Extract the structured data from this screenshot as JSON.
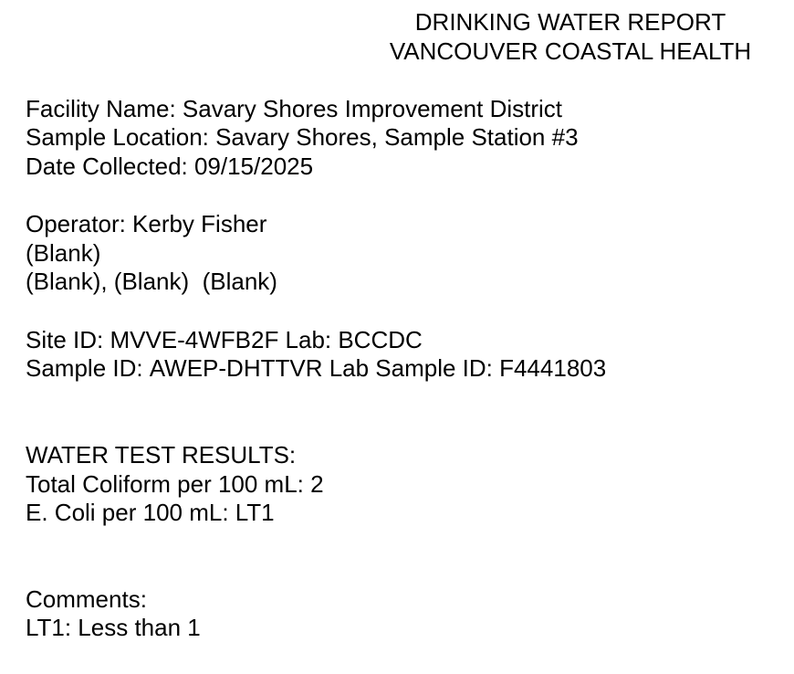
{
  "header": {
    "title": "DRINKING WATER REPORT",
    "subtitle": "VANCOUVER COASTAL HEALTH"
  },
  "facility": {
    "name": {
      "label": "Facility Name:",
      "value": "Savary Shores Improvement District"
    },
    "sample_location": {
      "label": "Sample Location:",
      "value": "Savary Shores, Sample Station #3"
    },
    "date_collected": {
      "label": "Date Collected:",
      "value": "09/15/2025"
    }
  },
  "operator": {
    "operator": {
      "label": "Operator:",
      "value": "Kerby Fisher"
    },
    "blank_line": "(Blank)",
    "blank_group_line": "(Blank), (Blank)  (Blank)"
  },
  "identifiers": {
    "site_id": {
      "label": "Site ID:",
      "value": "MVVE-4WFB2F"
    },
    "lab": {
      "label": "Lab:",
      "value": "BCCDC"
    },
    "sample_id": {
      "label": "Sample ID:",
      "value": "AWEP-DHTTVR"
    },
    "lab_sample_id": {
      "label": "Lab Sample ID:",
      "value": "F4441803"
    }
  },
  "results": {
    "heading": "WATER TEST RESULTS:",
    "total_coliform": {
      "label": "Total Coliform per 100 mL:",
      "value": "2"
    },
    "e_coli": {
      "label": "E. Coli per 100 mL:",
      "value": "LT1"
    }
  },
  "comments": {
    "heading": "Comments:",
    "lt1_note": {
      "label": "LT1:",
      "value": "Less than 1"
    }
  },
  "colors": {
    "background": "#ffffff",
    "text": "#000000"
  }
}
